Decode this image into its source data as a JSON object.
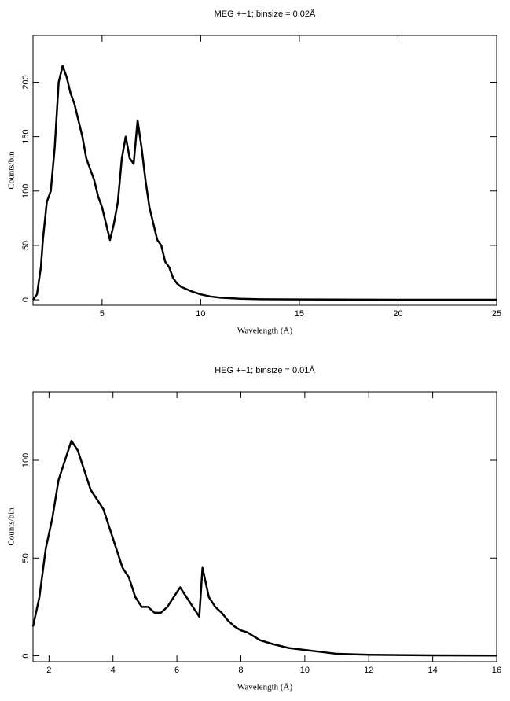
{
  "chart_data": [
    {
      "type": "line",
      "title": "MEG +−1; binsize = 0.02Å",
      "x_label": "Wavelength (Å)",
      "y_label": "Counts/bin",
      "color": "#000000",
      "x": [
        1.5,
        1.7,
        1.9,
        2.0,
        2.2,
        2.4,
        2.6,
        2.8,
        3.0,
        3.2,
        3.4,
        3.6,
        3.8,
        4.0,
        4.2,
        4.4,
        4.6,
        4.8,
        5.0,
        5.2,
        5.4,
        5.6,
        5.8,
        6.0,
        6.2,
        6.4,
        6.6,
        6.8,
        7.0,
        7.2,
        7.4,
        7.6,
        7.8,
        8.0,
        8.2,
        8.4,
        8.6,
        8.8,
        9.0,
        9.5,
        10,
        10.5,
        11,
        12,
        13,
        15,
        20,
        25
      ],
      "values": [
        0,
        5,
        30,
        55,
        90,
        100,
        140,
        200,
        215,
        205,
        190,
        180,
        165,
        150,
        130,
        120,
        110,
        95,
        85,
        70,
        55,
        70,
        90,
        130,
        150,
        130,
        125,
        165,
        140,
        110,
        85,
        70,
        55,
        50,
        35,
        30,
        20,
        15,
        12,
        8,
        5,
        3,
        2,
        1,
        0.5,
        0.3,
        0.1,
        0.1
      ],
      "xlim": [
        1.5,
        25
      ],
      "ylim": [
        -5,
        243
      ],
      "xticks": [
        5,
        10,
        15,
        20,
        25
      ],
      "yticks": [
        0,
        50,
        100,
        150,
        200
      ]
    },
    {
      "type": "line",
      "title": "HEG +−1; binsize = 0.01Å",
      "x_label": "Wavelength (Å)",
      "y_label": "Counts/bin",
      "color": "#000000",
      "x": [
        1.5,
        1.7,
        1.9,
        2.1,
        2.3,
        2.5,
        2.7,
        2.9,
        3.1,
        3.3,
        3.5,
        3.7,
        3.9,
        4.1,
        4.3,
        4.5,
        4.7,
        4.9,
        5.1,
        5.3,
        5.5,
        5.7,
        5.9,
        6.1,
        6.3,
        6.5,
        6.7,
        6.8,
        7.0,
        7.2,
        7.4,
        7.6,
        7.8,
        8.0,
        8.2,
        8.4,
        8.6,
        8.8,
        9.0,
        9.5,
        10,
        10.5,
        11,
        12,
        14,
        16
      ],
      "values": [
        15,
        30,
        55,
        70,
        90,
        100,
        110,
        105,
        95,
        85,
        80,
        75,
        65,
        55,
        45,
        40,
        30,
        25,
        25,
        22,
        22,
        25,
        30,
        35,
        30,
        25,
        20,
        45,
        30,
        25,
        22,
        18,
        15,
        13,
        12,
        10,
        8,
        7,
        6,
        4,
        3,
        2,
        1,
        0.5,
        0.2,
        0.1
      ],
      "xlim": [
        1.5,
        16
      ],
      "ylim": [
        -3,
        135
      ],
      "xticks": [
        2,
        4,
        6,
        8,
        10,
        12,
        14,
        16
      ],
      "yticks": [
        0,
        50,
        100
      ]
    }
  ]
}
